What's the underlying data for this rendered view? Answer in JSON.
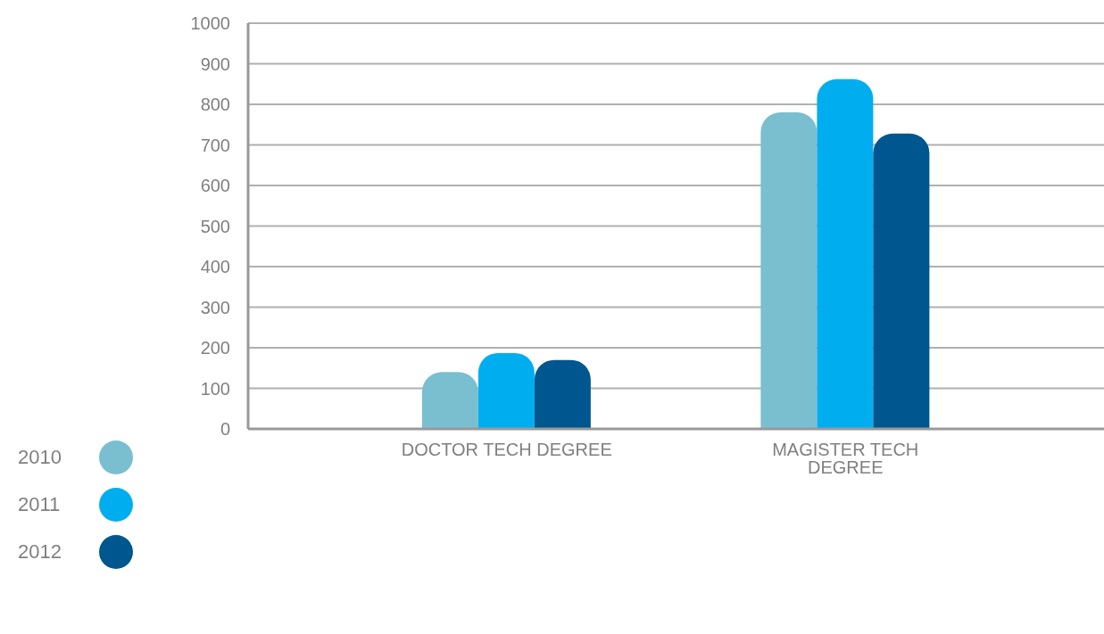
{
  "chart_data": {
    "type": "bar",
    "categories": [
      "DOCTOR TECH DEGREE",
      "MAGISTER TECH DEGREE"
    ],
    "series": [
      {
        "name": "2010",
        "color": "#79bfd0",
        "values": [
          140,
          780
        ]
      },
      {
        "name": "2011",
        "color": "#00aeef",
        "values": [
          187,
          862
        ]
      },
      {
        "name": "2012",
        "color": "#00568f",
        "values": [
          170,
          728
        ]
      }
    ],
    "ylim": [
      0,
      1000
    ],
    "yticks": [
      0,
      100,
      200,
      300,
      400,
      500,
      600,
      700,
      800,
      900,
      1000
    ],
    "grid": "y",
    "legend": "left"
  }
}
